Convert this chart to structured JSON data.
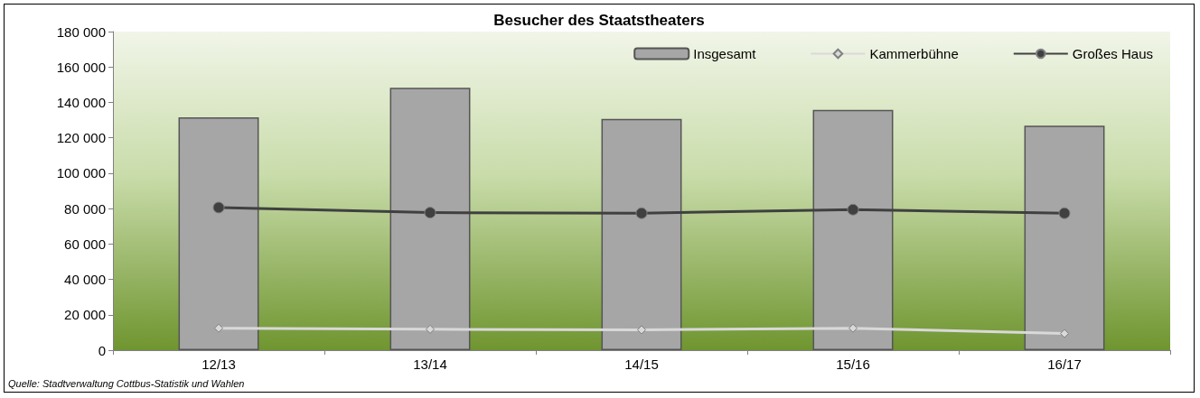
{
  "chart_data": {
    "type": "bar",
    "title": "Besucher des Staatstheaters",
    "categories": [
      "12/13",
      "13/14",
      "14/15",
      "15/16",
      "16/17"
    ],
    "series": [
      {
        "name": "Insgesamt",
        "color": "#a6a6a6",
        "values": [
          131500,
          148200,
          130700,
          135800,
          126800
        ]
      },
      {
        "name": "Kammerbühne",
        "type": "line",
        "marker": "diamond",
        "color": "#d9d9d9",
        "values": [
          12400,
          11800,
          11500,
          12400,
          9400
        ]
      },
      {
        "name": "Großes Haus",
        "type": "line",
        "marker": "circle",
        "color": "#404040",
        "values": [
          80600,
          77700,
          77400,
          79400,
          77400
        ]
      }
    ],
    "ylim": [
      0,
      180000
    ],
    "yticks": [
      0,
      20000,
      40000,
      60000,
      80000,
      100000,
      120000,
      140000,
      160000,
      180000
    ],
    "grid": false,
    "legend": "top right",
    "annotations": [
      "Quelle: Stadtverwaltung Cottbus-Statistik und Wahlen"
    ]
  }
}
